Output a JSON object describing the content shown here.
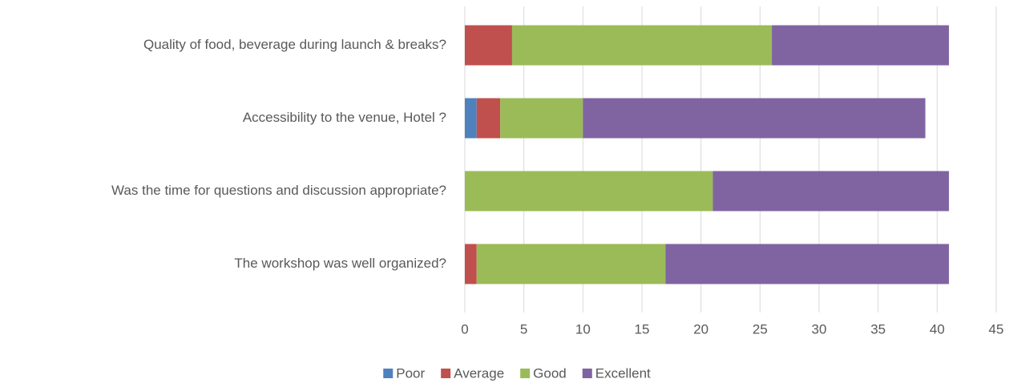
{
  "chart_data": {
    "type": "stacked_bar_horizontal",
    "categories": [
      "Quality of food, beverage during launch & breaks?",
      "Accessibility to the venue, Hotel ?",
      "Was the time for questions and discussion appropriate?",
      "The workshop was well organized?"
    ],
    "series": [
      {
        "name": "Poor",
        "color": "#4f81bd",
        "values": [
          0,
          1,
          0,
          0
        ]
      },
      {
        "name": "Average",
        "color": "#c0504d",
        "values": [
          4,
          2,
          0,
          1
        ]
      },
      {
        "name": "Good",
        "color": "#9bbb59",
        "values": [
          22,
          7,
          21,
          16
        ]
      },
      {
        "name": "Excellent",
        "color": "#8064a2",
        "values": [
          15,
          29,
          20,
          24
        ]
      }
    ],
    "xlim": [
      0,
      45
    ],
    "xticks": [
      0,
      5,
      10,
      15,
      20,
      25,
      30,
      35,
      40,
      45
    ],
    "grid": true,
    "legend": "bottom"
  }
}
